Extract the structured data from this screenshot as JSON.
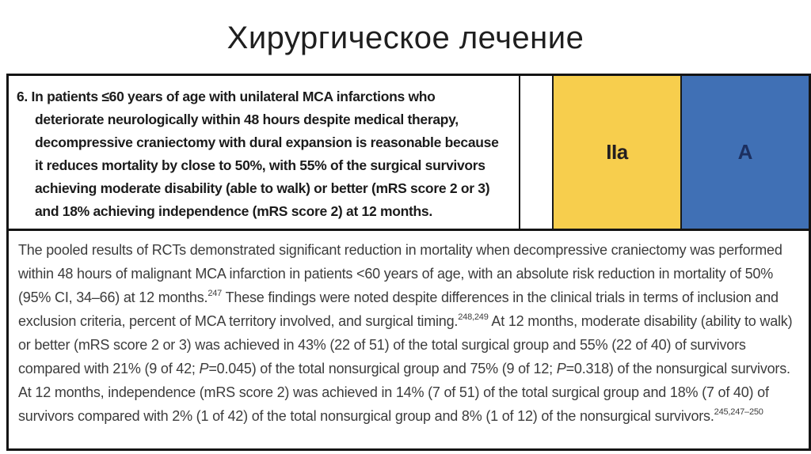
{
  "title": "Хирургическое лечение",
  "colors": {
    "cor_bg": "#F7CE4D",
    "cor_text": "#231F20",
    "loe_bg": "#4070B5",
    "loe_text": "#1C2F60",
    "border": "#141414"
  },
  "recommendation": {
    "lines": [
      "6. In patients ≤60 years of age with unilateral MCA infarctions who",
      "deteriorate neurologically within 48 hours despite medical therapy,",
      "decompressive craniectomy with dural expansion is reasonable because",
      "it reduces mortality by close to 50%, with 55% of the surgical survivors",
      "achieving moderate disability (able to walk) or better (mRS score 2 or 3)",
      "and 18% achieving independence (mRS score 2) at 12 months."
    ],
    "class_of_recommendation": "IIa",
    "level_of_evidence": "A"
  },
  "paragraph": {
    "segments": [
      {
        "t": "The pooled results of RCTs demonstrated significant reduction in mortality when decompressive craniectomy was performed within 48 hours of malignant MCA infarction in patients <60 years of age, with an absolute risk reduction in mortality of 50% (95% CI, 34–66) at 12 months.",
        "s": ""
      },
      {
        "t": "247",
        "s": "sup"
      },
      {
        "t": " These findings were noted despite differences in the clinical trials in terms of inclusion and exclusion criteria, percent of MCA territory involved, and surgical timing.",
        "s": ""
      },
      {
        "t": "248,249",
        "s": "sup"
      },
      {
        "t": " At 12 months, moderate disability (ability to walk) or better (mRS score 2 or 3) was achieved in 43% (22 of 51) of the total surgical group and 55% (22 of 40) of survivors compared with 21% (9 of 42; ",
        "s": ""
      },
      {
        "t": "P",
        "s": "i"
      },
      {
        "t": "=0.045) of the total nonsurgical group and 75% (9 of 12; ",
        "s": ""
      },
      {
        "t": "P",
        "s": "i"
      },
      {
        "t": "=0.318) of the nonsurgical survivors. At 12 months, independence (mRS score 2) was achieved in 14% (7 of 51) of the total surgical group and 18% (7 of 40) of survivors compared with 2% (1 of 42) of the total nonsurgical group and 8% (1 of 12) of the nonsurgical survivors.",
        "s": ""
      },
      {
        "t": "245,247–250",
        "s": "sup"
      }
    ]
  }
}
